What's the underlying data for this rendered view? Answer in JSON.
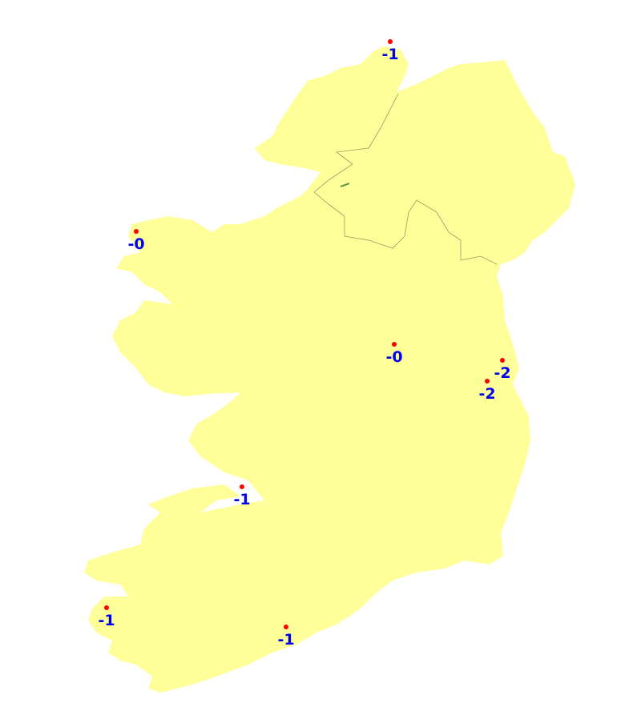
{
  "colors": {
    "land": "#ffff99",
    "border": "#999966",
    "lake": "#669944",
    "point": "#ff0000",
    "label": "#0000ee",
    "background": "#ffffff"
  },
  "points": [
    {
      "label": "-1",
      "lat": 55.38,
      "lon": -7.33
    },
    {
      "label": "-0",
      "lat": 54.23,
      "lon": -10.0
    },
    {
      "label": "-0",
      "lat": 53.54,
      "lon": -7.36
    },
    {
      "label": "-2",
      "lat": 53.43,
      "lon": -6.24
    },
    {
      "label": "-2",
      "lat": 53.3,
      "lon": -6.44
    },
    {
      "label": "-1",
      "lat": 52.7,
      "lon": -8.92
    },
    {
      "label": "-1",
      "lat": 51.94,
      "lon": -10.24
    },
    {
      "label": "-1",
      "lat": 51.85,
      "lon": -8.49
    }
  ]
}
